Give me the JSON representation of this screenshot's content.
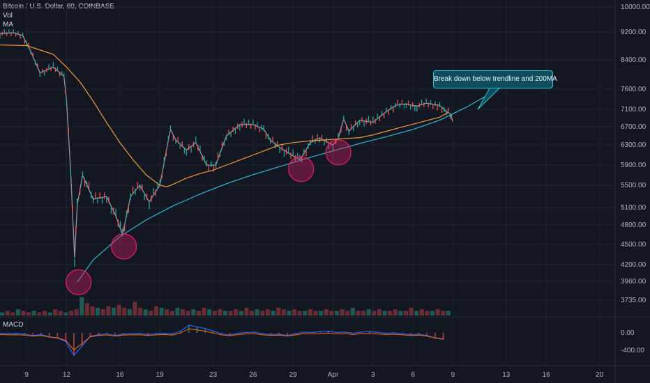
{
  "chart_data": {
    "type": "line",
    "title": "Bitcoin / U.S. Dollar, 60, COINBASE",
    "indicators": [
      "Vol",
      "MA"
    ],
    "price_axis": [
      "10000.00",
      "9200.00",
      "8400.00",
      "7600.00",
      "7100.00",
      "6700.00",
      "6300.00",
      "5900.00",
      "5500.00",
      "5100.00",
      "4800.00",
      "4500.00",
      "4200.00",
      "3960.00",
      "3735.00"
    ],
    "macd_axis": [
      "0.00",
      "-400.00"
    ],
    "x_ticks": [
      "9",
      "12",
      "16",
      "19",
      "23",
      "26",
      "29",
      "Apr",
      "3",
      "6",
      "9",
      "13",
      "16",
      "20"
    ],
    "annotation": "Break down below trendline and 200MA",
    "macd_label": "MACD",
    "ylim": [
      3700,
      10000
    ],
    "series": [
      {
        "key": "price",
        "x_day": [
          7,
          8,
          8.7,
          9.3,
          10,
          11,
          11.8,
          12.0,
          12.3,
          12.6,
          12.8,
          13.2,
          14,
          15,
          15.7,
          16.2,
          16.8,
          17.5,
          18.2,
          19,
          19.8,
          20.2,
          21,
          21.7,
          22.5,
          23.2,
          24,
          25,
          26,
          26.8,
          27.3,
          28,
          29,
          29.5,
          30.3,
          31,
          32,
          32.4,
          32.8,
          33.2,
          34,
          35,
          36,
          36.7,
          37.5,
          38.3,
          39,
          40,
          40.5,
          40.8,
          41
        ],
        "price": [
          9150,
          9180,
          9100,
          8650,
          8050,
          8200,
          7950,
          7300,
          5800,
          4300,
          5150,
          5700,
          5250,
          5300,
          4950,
          4650,
          5300,
          5500,
          5200,
          5500,
          6650,
          6400,
          6200,
          6350,
          5900,
          5900,
          6500,
          6750,
          6750,
          6650,
          6400,
          6250,
          6080,
          6000,
          6350,
          6450,
          6300,
          6450,
          6880,
          6600,
          6850,
          6800,
          7050,
          7200,
          7230,
          7180,
          7250,
          7200,
          7050,
          7000,
          6820
        ]
      },
      {
        "key": "ma200",
        "color": "#f59b3c",
        "x_day": [
          7,
          9,
          11,
          12,
          13,
          14,
          15,
          16,
          17,
          18,
          19,
          19.5,
          20,
          21,
          22,
          23,
          24,
          25,
          26,
          27,
          28,
          29,
          30,
          31,
          32,
          33,
          34,
          35,
          36,
          37,
          38,
          39,
          40,
          40.6
        ],
        "price": [
          8830,
          8810,
          8560,
          8200,
          7800,
          7300,
          6800,
          6350,
          6000,
          5700,
          5500,
          5470,
          5520,
          5640,
          5730,
          5800,
          5900,
          6000,
          6100,
          6200,
          6300,
          6350,
          6380,
          6400,
          6420,
          6440,
          6460,
          6520,
          6600,
          6680,
          6760,
          6840,
          6920,
          7020
        ]
      },
      {
        "key": "trendline",
        "color": "#2fb6d4",
        "x_day": [
          12.8,
          14,
          16,
          18,
          20,
          22,
          24,
          26,
          28,
          30,
          32,
          34,
          36,
          38,
          40,
          42,
          44.5
        ],
        "price": [
          3950,
          4270,
          4620,
          4890,
          5130,
          5340,
          5530,
          5710,
          5870,
          6030,
          6180,
          6330,
          6480,
          6640,
          6850,
          7150,
          7620
        ]
      }
    ],
    "volume": [
      2,
      3,
      2,
      4,
      3,
      2,
      3,
      2,
      3,
      2,
      4,
      3,
      2,
      3,
      4,
      12,
      8,
      6,
      5,
      4,
      6,
      5,
      7,
      5,
      4,
      9,
      5,
      4,
      3,
      6,
      5,
      4,
      3,
      5,
      4,
      3,
      4,
      3,
      5,
      4,
      3,
      4,
      3,
      3,
      4,
      3,
      5,
      3,
      4,
      3,
      4,
      3,
      5,
      4,
      3,
      4,
      3,
      3,
      4,
      3,
      3,
      4,
      3,
      3,
      4,
      3,
      5,
      3,
      3,
      4,
      3,
      4,
      3,
      3,
      4,
      3,
      3,
      5,
      3,
      4,
      3,
      3,
      4,
      3,
      3
    ],
    "macd": [
      -10,
      -20,
      -15,
      -30,
      -60,
      -40,
      -90,
      -120,
      -200,
      -520,
      -300,
      -80,
      -40,
      -20,
      -60,
      -30,
      -20,
      -15,
      -40,
      -20,
      -10,
      -30,
      40,
      180,
      140,
      100,
      40,
      -20,
      -50,
      -10,
      10,
      20,
      -20,
      -40,
      -30,
      -60,
      -20,
      20,
      10,
      30,
      40,
      10,
      20,
      -10,
      20,
      30,
      10,
      -10,
      0,
      -20,
      -40,
      -30,
      -60,
      -120,
      -150
    ],
    "highlights": [
      {
        "x_day": 12.9,
        "price": 3950
      },
      {
        "x_day": 16.3,
        "price": 4470
      },
      {
        "x_day": 29.6,
        "price": 5820
      },
      {
        "x_day": 32.4,
        "price": 6150
      }
    ]
  }
}
